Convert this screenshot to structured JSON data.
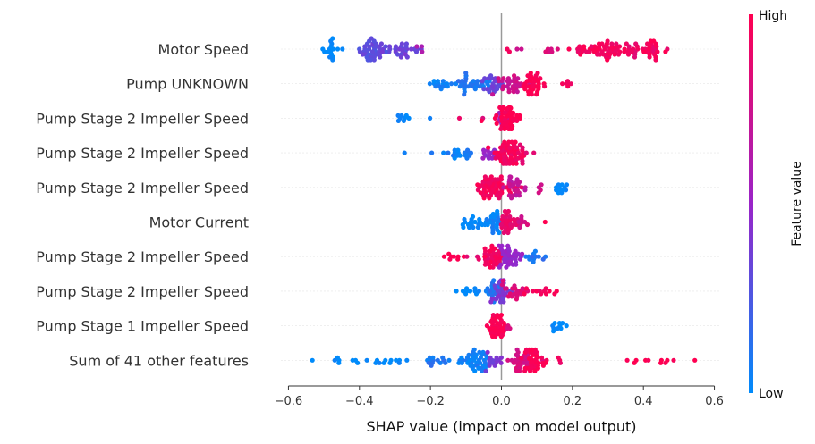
{
  "chart_data": {
    "type": "scatter",
    "subtype": "shap-beeswarm",
    "xlabel": "SHAP value (impact on model output)",
    "xlim": [
      -0.62,
      0.62
    ],
    "x_ticks": [
      -0.6,
      -0.4,
      -0.2,
      0.0,
      0.2,
      0.4,
      0.6
    ],
    "x_tick_labels": [
      "−0.6",
      "−0.4",
      "−0.2",
      "0.0",
      "0.2",
      "0.4",
      "0.6"
    ],
    "grid": false,
    "colorbar": {
      "title": "Feature value",
      "high_label": "High",
      "low_label": "Low",
      "low_color": "#008bfb",
      "high_color": "#ff0051",
      "mid_color": "#9a24c8"
    },
    "features": [
      {
        "name": "Motor Speed",
        "clusters": [
          {
            "center": -0.48,
            "spread": 0.015,
            "count": 16,
            "fv": 0.0
          },
          {
            "center": -0.36,
            "spread": 0.03,
            "count": 40,
            "fv": 0.3
          },
          {
            "center": -0.28,
            "spread": 0.025,
            "count": 25,
            "fv": 0.35
          },
          {
            "center": -0.23,
            "spread": 0.01,
            "count": 3,
            "fv": 0.6
          },
          {
            "center": 0.02,
            "spread": 0.01,
            "count": 2,
            "fv": 0.9
          },
          {
            "center": 0.12,
            "spread": 0.04,
            "count": 8,
            "fv": 0.8
          },
          {
            "center": 0.28,
            "spread": 0.035,
            "count": 50,
            "fv": 0.95
          },
          {
            "center": 0.38,
            "spread": 0.04,
            "count": 25,
            "fv": 0.9
          },
          {
            "center": 0.43,
            "spread": 0.015,
            "count": 15,
            "fv": 1.0
          }
        ]
      },
      {
        "name": "Pump UNKNOWN",
        "clusters": [
          {
            "center": -0.17,
            "spread": 0.025,
            "count": 15,
            "fv": 0.05
          },
          {
            "center": -0.08,
            "spread": 0.03,
            "count": 30,
            "fv": 0.1
          },
          {
            "center": -0.03,
            "spread": 0.02,
            "count": 20,
            "fv": 0.35
          },
          {
            "center": 0.03,
            "spread": 0.03,
            "count": 30,
            "fv": 0.75
          },
          {
            "center": 0.09,
            "spread": 0.015,
            "count": 35,
            "fv": 1.0
          },
          {
            "center": 0.18,
            "spread": 0.01,
            "count": 5,
            "fv": 0.95
          }
        ]
      },
      {
        "name": "Pump Stage 2 Impeller Speed",
        "clusters": [
          {
            "center": -0.28,
            "spread": 0.02,
            "count": 8,
            "fv": 0.0
          },
          {
            "center": -0.2,
            "spread": 0.005,
            "count": 1,
            "fv": 0.05
          },
          {
            "center": -0.12,
            "spread": 0.005,
            "count": 1,
            "fv": 0.9
          },
          {
            "center": -0.05,
            "spread": 0.005,
            "count": 1,
            "fv": 0.85
          },
          {
            "center": 0.0,
            "spread": 0.01,
            "count": 8,
            "fv": 0.6
          },
          {
            "center": 0.02,
            "spread": 0.018,
            "count": 60,
            "fv": 1.0
          }
        ]
      },
      {
        "name": "Pump Stage 2 Impeller Speed",
        "clusters": [
          {
            "center": -0.28,
            "spread": 0.005,
            "count": 1,
            "fv": 0.0
          },
          {
            "center": -0.12,
            "spread": 0.025,
            "count": 18,
            "fv": 0.05
          },
          {
            "center": -0.03,
            "spread": 0.015,
            "count": 12,
            "fv": 0.5
          },
          {
            "center": 0.02,
            "spread": 0.025,
            "count": 60,
            "fv": 0.95
          },
          {
            "center": 0.06,
            "spread": 0.01,
            "count": 6,
            "fv": 0.85
          }
        ]
      },
      {
        "name": "Pump Stage 2 Impeller Speed",
        "clusters": [
          {
            "center": -0.02,
            "spread": 0.03,
            "count": 60,
            "fv": 0.95
          },
          {
            "center": 0.03,
            "spread": 0.02,
            "count": 25,
            "fv": 0.7
          },
          {
            "center": 0.1,
            "spread": 0.015,
            "count": 4,
            "fv": 0.8
          },
          {
            "center": 0.17,
            "spread": 0.012,
            "count": 12,
            "fv": 0.0
          }
        ]
      },
      {
        "name": "Motor Current",
        "clusters": [
          {
            "center": -0.07,
            "spread": 0.025,
            "count": 18,
            "fv": 0.0
          },
          {
            "center": -0.02,
            "spread": 0.012,
            "count": 25,
            "fv": 0.05
          },
          {
            "center": 0.02,
            "spread": 0.015,
            "count": 30,
            "fv": 0.9
          },
          {
            "center": 0.06,
            "spread": 0.015,
            "count": 8,
            "fv": 0.8
          },
          {
            "center": 0.13,
            "spread": 0.005,
            "count": 1,
            "fv": 1.0
          }
        ]
      },
      {
        "name": "Pump Stage 2 Impeller Speed",
        "clusters": [
          {
            "center": -0.14,
            "spread": 0.02,
            "count": 8,
            "fv": 1.0
          },
          {
            "center": -0.05,
            "spread": 0.015,
            "count": 12,
            "fv": 0.9
          },
          {
            "center": -0.02,
            "spread": 0.015,
            "count": 25,
            "fv": 0.95
          },
          {
            "center": 0.02,
            "spread": 0.02,
            "count": 35,
            "fv": 0.5
          },
          {
            "center": 0.09,
            "spread": 0.02,
            "count": 12,
            "fv": 0.1
          }
        ]
      },
      {
        "name": "Pump Stage 2 Impeller Speed",
        "clusters": [
          {
            "center": -0.09,
            "spread": 0.02,
            "count": 10,
            "fv": 0.0
          },
          {
            "center": -0.02,
            "spread": 0.012,
            "count": 20,
            "fv": 0.1
          },
          {
            "center": 0.0,
            "spread": 0.015,
            "count": 35,
            "fv": 0.4
          },
          {
            "center": 0.04,
            "spread": 0.02,
            "count": 20,
            "fv": 0.85
          },
          {
            "center": 0.11,
            "spread": 0.03,
            "count": 12,
            "fv": 0.95
          }
        ]
      },
      {
        "name": "Pump Stage 1 Impeller Speed",
        "clusters": [
          {
            "center": -0.01,
            "spread": 0.015,
            "count": 45,
            "fv": 1.0
          },
          {
            "center": 0.02,
            "spread": 0.005,
            "count": 3,
            "fv": 0.85
          },
          {
            "center": 0.16,
            "spread": 0.015,
            "count": 10,
            "fv": 0.0
          }
        ]
      },
      {
        "name": "Sum of 41 other features",
        "clusters": [
          {
            "center": -0.46,
            "spread": 0.05,
            "count": 8,
            "fv": 0.0
          },
          {
            "center": -0.3,
            "spread": 0.05,
            "count": 12,
            "fv": 0.0
          },
          {
            "center": -0.18,
            "spread": 0.035,
            "count": 15,
            "fv": 0.1
          },
          {
            "center": -0.08,
            "spread": 0.03,
            "count": 40,
            "fv": 0.05
          },
          {
            "center": -0.03,
            "spread": 0.02,
            "count": 15,
            "fv": 0.4
          },
          {
            "center": 0.05,
            "spread": 0.02,
            "count": 30,
            "fv": 0.8
          },
          {
            "center": 0.09,
            "spread": 0.02,
            "count": 40,
            "fv": 1.0
          },
          {
            "center": 0.17,
            "spread": 0.01,
            "count": 3,
            "fv": 0.95
          },
          {
            "center": 0.42,
            "spread": 0.05,
            "count": 10,
            "fv": 1.0
          },
          {
            "center": 0.54,
            "spread": 0.005,
            "count": 1,
            "fv": 1.0
          }
        ]
      }
    ]
  }
}
